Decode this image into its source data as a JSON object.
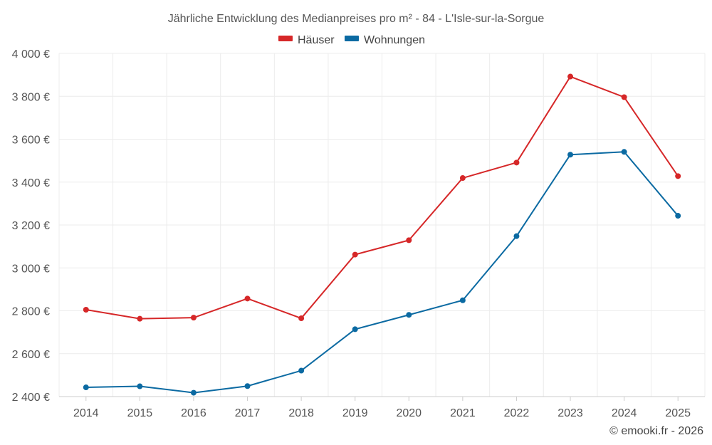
{
  "chart_data": {
    "type": "line",
    "title": "Jährliche Entwicklung des Medianpreises pro m² - 84 - L'Isle-sur-la-Sorgue",
    "categories": [
      "2014",
      "2015",
      "2016",
      "2017",
      "2018",
      "2019",
      "2020",
      "2021",
      "2022",
      "2023",
      "2024",
      "2025"
    ],
    "series": [
      {
        "name": "Häuser",
        "color": "#d62728",
        "values": [
          2805,
          2763,
          2768,
          2857,
          2765,
          3062,
          3129,
          3419,
          3491,
          3892,
          3796,
          3428
        ]
      },
      {
        "name": "Wohnungen",
        "color": "#0b6aa2",
        "values": [
          2443,
          2448,
          2418,
          2449,
          2521,
          2714,
          2781,
          2849,
          3148,
          3528,
          3541,
          3243
        ]
      }
    ],
    "ylim": [
      2400,
      4000
    ],
    "yticks": [
      2400,
      2600,
      2800,
      3000,
      3200,
      3400,
      3600,
      3800,
      4000
    ],
    "ytick_labels": [
      "2 400 €",
      "2 600 €",
      "2 800 €",
      "3 000 €",
      "3 200 €",
      "3 400 €",
      "3 600 €",
      "3 800 €",
      "4 000 €"
    ],
    "grid": true,
    "legend_position": "top-center",
    "credit": "© emooki.fr - 2026"
  }
}
